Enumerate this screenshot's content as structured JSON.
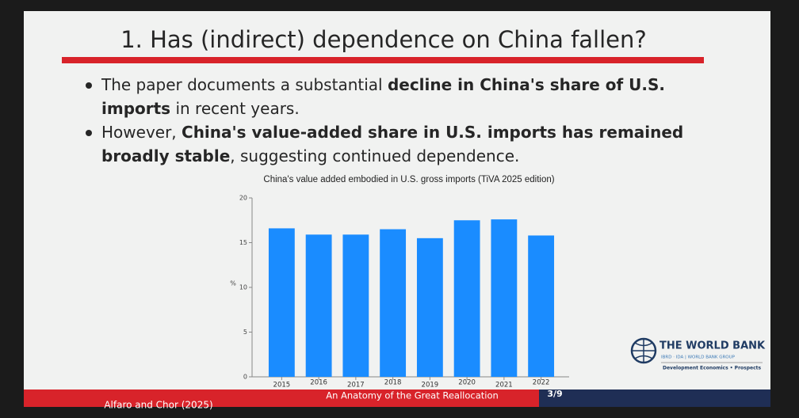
{
  "header": {
    "title": "1. Has (indirect) dependence on China fallen?"
  },
  "bullets": [
    {
      "lines": [
        [
          {
            "text": "The paper documents a substantial ",
            "bold": false
          },
          {
            "text": "decline in China's share of U.S.",
            "bold": true
          }
        ],
        [
          {
            "text": "imports",
            "bold": true
          },
          {
            "text": " in recent years.",
            "bold": false
          }
        ]
      ]
    },
    {
      "lines": [
        [
          {
            "text": "However, ",
            "bold": false
          },
          {
            "text": "China's value-added share in U.S. imports has remained",
            "bold": true
          }
        ],
        [
          {
            "text": "broadly stable",
            "bold": true
          },
          {
            "text": ", suggesting continued dependence.",
            "bold": false
          }
        ]
      ]
    }
  ],
  "chart_data": {
    "type": "bar",
    "title": "China's value added embodied in U.S. gross imports (TiVA 2025 edition)",
    "y_label": "%",
    "categories": [
      "2015",
      "2016",
      "2017",
      "2018",
      "2019",
      "2020",
      "2021",
      "2022"
    ],
    "values": [
      16.6,
      15.9,
      15.9,
      16.5,
      15.5,
      17.5,
      17.6,
      15.8
    ],
    "color": "#1a8cff",
    "ylim": [
      0,
      20
    ],
    "yticks": [
      0,
      5,
      10,
      15,
      20
    ]
  },
  "logo": {
    "name": "THE WORLD BANK",
    "group": "IBRD · IDA | WORLD BANK GROUP",
    "unit": "Development Economics • Prospects"
  },
  "footer": {
    "authors": "Alfaro and Chor (2025)",
    "paper": "An Anatomy of the Great Reallocation",
    "page": "3/9"
  }
}
